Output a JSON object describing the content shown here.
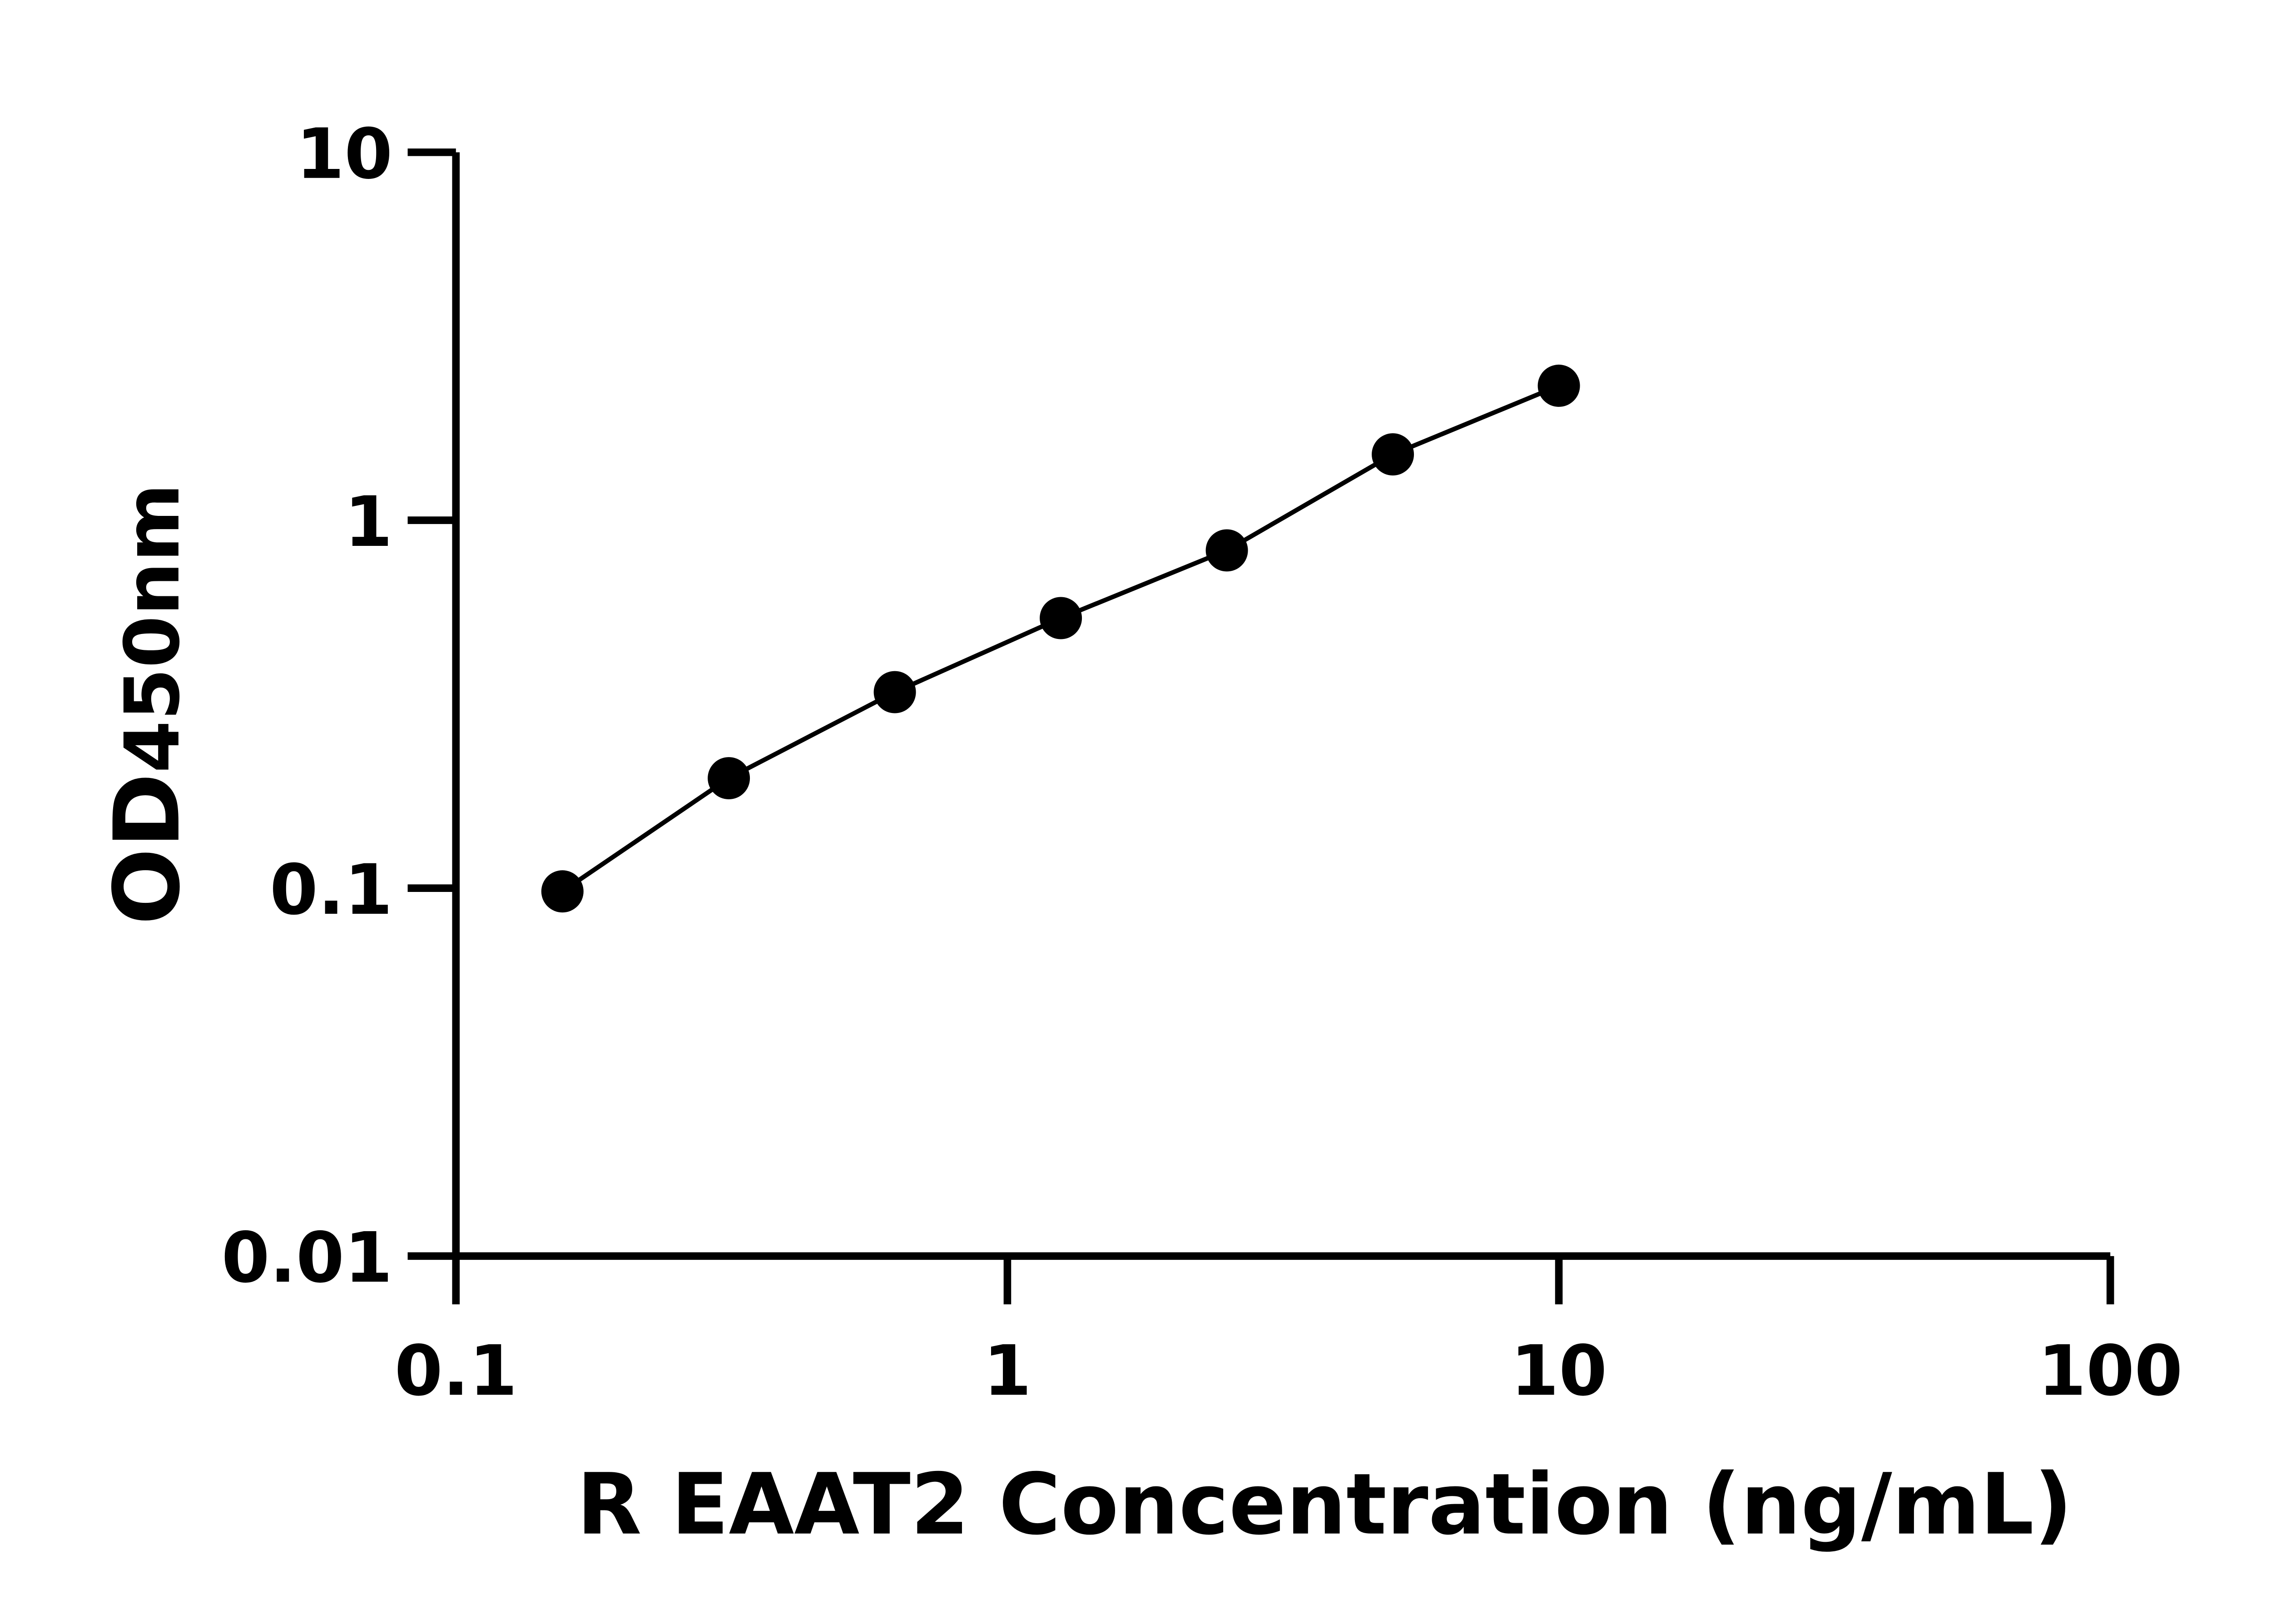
{
  "chart_data": {
    "type": "scatter",
    "title": "",
    "xlabel": "R EAAT2 Concentration (ng/mL)",
    "ylabel_main": "OD",
    "ylabel_sub": "450nm",
    "x_scale": "log",
    "y_scale": "log",
    "xlim": [
      0.1,
      100
    ],
    "ylim": [
      0.01,
      10
    ],
    "x_ticks": [
      0.1,
      1,
      10,
      100
    ],
    "x_tick_labels": [
      "0.1",
      "1",
      "10",
      "100"
    ],
    "y_ticks": [
      0.01,
      0.1,
      1,
      10
    ],
    "y_tick_labels": [
      "0.01",
      "0.1",
      "1",
      "10"
    ],
    "grid": false,
    "legend": "none",
    "colors": {
      "points": "#000000",
      "line": "#000000",
      "axes": "#000000"
    },
    "series": [
      {
        "x": [
          0.156,
          0.3125,
          0.625,
          1.25,
          2.5,
          5,
          10
        ],
        "y": [
          0.098,
          0.199,
          0.341,
          0.542,
          0.828,
          1.51,
          2.32
        ],
        "fit_line": true
      }
    ]
  }
}
